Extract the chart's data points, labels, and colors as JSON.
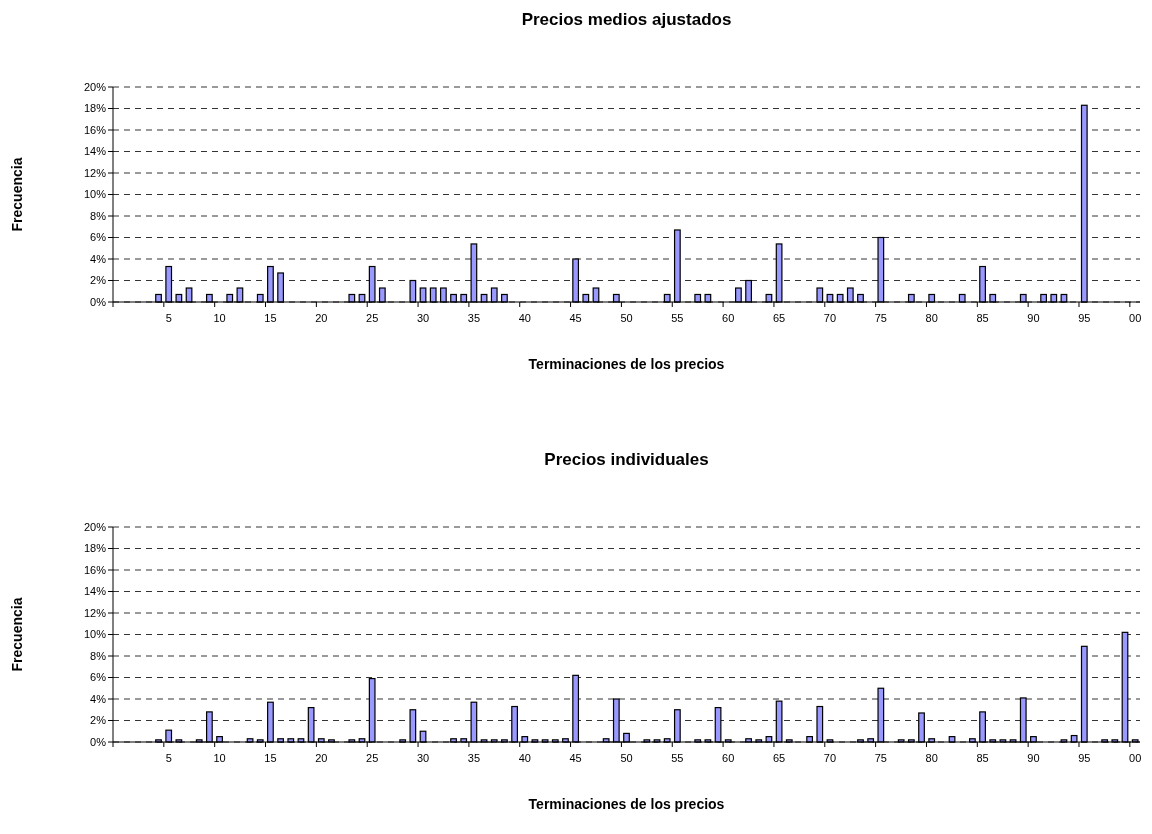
{
  "chart_data": [
    {
      "type": "bar",
      "title": "Precios medios ajustados",
      "xlabel": "Terminaciones de los precios",
      "ylabel": "Frecuencia",
      "color": "#9999ff",
      "grid": "y",
      "ylim": [
        0,
        20
      ],
      "yticks": [
        {
          "value": 0,
          "label": "0%"
        },
        {
          "value": 2,
          "label": "2%"
        },
        {
          "value": 4,
          "label": "4%"
        },
        {
          "value": 6,
          "label": "6%"
        },
        {
          "value": 8,
          "label": "8%"
        },
        {
          "value": 10,
          "label": "10%"
        },
        {
          "value": 12,
          "label": "12%"
        },
        {
          "value": 14,
          "label": "14%"
        },
        {
          "value": 16,
          "label": "16%"
        },
        {
          "value": 18,
          "label": "18%"
        },
        {
          "value": 20,
          "label": "20%"
        }
      ],
      "categories": [
        null,
        null,
        null,
        null,
        null,
        "5",
        null,
        null,
        null,
        null,
        "10",
        null,
        null,
        null,
        null,
        "15",
        null,
        null,
        null,
        null,
        "20",
        null,
        null,
        null,
        null,
        "25",
        null,
        null,
        null,
        null,
        "30",
        null,
        null,
        null,
        null,
        "35",
        null,
        null,
        null,
        null,
        "40",
        null,
        null,
        null,
        null,
        "45",
        null,
        null,
        null,
        null,
        "50",
        null,
        null,
        null,
        null,
        "55",
        null,
        null,
        null,
        null,
        "60",
        null,
        null,
        null,
        null,
        "65",
        null,
        null,
        null,
        null,
        "70",
        null,
        null,
        null,
        null,
        "75",
        null,
        null,
        null,
        null,
        "80",
        null,
        null,
        null,
        null,
        "85",
        null,
        null,
        null,
        null,
        "90",
        null,
        null,
        null,
        null,
        "95",
        null,
        null,
        null,
        null,
        "00"
      ],
      "values": [
        null,
        null,
        null,
        null,
        0.7,
        3.3,
        0.7,
        1.3,
        null,
        0.7,
        null,
        0.7,
        1.3,
        null,
        0.7,
        3.3,
        2.7,
        null,
        null,
        null,
        null,
        null,
        null,
        0.7,
        0.7,
        3.3,
        1.3,
        null,
        null,
        2.0,
        1.3,
        1.3,
        1.3,
        0.7,
        0.7,
        5.4,
        0.7,
        1.3,
        0.7,
        null,
        null,
        null,
        null,
        null,
        null,
        4.0,
        0.7,
        1.3,
        null,
        0.7,
        null,
        null,
        null,
        null,
        0.7,
        6.7,
        null,
        0.7,
        0.7,
        null,
        null,
        1.3,
        2.0,
        null,
        0.7,
        5.4,
        null,
        null,
        null,
        1.3,
        0.7,
        0.7,
        1.3,
        0.7,
        null,
        6.0,
        null,
        null,
        0.7,
        null,
        0.7,
        null,
        null,
        0.7,
        null,
        3.3,
        0.7,
        null,
        null,
        0.7,
        null,
        0.7,
        0.7,
        0.7,
        null,
        18.3,
        null,
        null,
        null,
        null,
        null
      ]
    },
    {
      "type": "bar",
      "title": "Precios individuales",
      "xlabel": "Terminaciones de los precios",
      "ylabel": "Frecuencia",
      "color": "#9999ff",
      "grid": "y",
      "ylim": [
        0,
        20
      ],
      "yticks": [
        {
          "value": 0,
          "label": "0%"
        },
        {
          "value": 2,
          "label": "2%"
        },
        {
          "value": 4,
          "label": "4%"
        },
        {
          "value": 6,
          "label": "6%"
        },
        {
          "value": 8,
          "label": "8%"
        },
        {
          "value": 10,
          "label": "10%"
        },
        {
          "value": 12,
          "label": "12%"
        },
        {
          "value": 14,
          "label": "14%"
        },
        {
          "value": 16,
          "label": "16%"
        },
        {
          "value": 18,
          "label": "18%"
        },
        {
          "value": 20,
          "label": "20%"
        }
      ],
      "categories": [
        null,
        null,
        null,
        null,
        null,
        "5",
        null,
        null,
        null,
        null,
        "10",
        null,
        null,
        null,
        null,
        "15",
        null,
        null,
        null,
        null,
        "20",
        null,
        null,
        null,
        null,
        "25",
        null,
        null,
        null,
        null,
        "30",
        null,
        null,
        null,
        null,
        "35",
        null,
        null,
        null,
        null,
        "40",
        null,
        null,
        null,
        null,
        "45",
        null,
        null,
        null,
        null,
        "50",
        null,
        null,
        null,
        null,
        "55",
        null,
        null,
        null,
        null,
        "60",
        null,
        null,
        null,
        null,
        "65",
        null,
        null,
        null,
        null,
        "70",
        null,
        null,
        null,
        null,
        "75",
        null,
        null,
        null,
        null,
        "80",
        null,
        null,
        null,
        null,
        "85",
        null,
        null,
        null,
        null,
        "90",
        null,
        null,
        null,
        null,
        "95",
        null,
        null,
        null,
        null,
        "00"
      ],
      "values": [
        null,
        null,
        null,
        null,
        0.2,
        1.1,
        0.2,
        null,
        0.2,
        2.8,
        0.5,
        null,
        null,
        0.3,
        0.2,
        3.7,
        0.3,
        0.3,
        0.3,
        3.2,
        0.3,
        0.2,
        null,
        0.2,
        0.3,
        5.9,
        null,
        null,
        0.2,
        3.0,
        1.0,
        null,
        null,
        0.3,
        0.3,
        3.7,
        0.2,
        0.2,
        0.2,
        3.3,
        0.5,
        0.2,
        0.2,
        0.2,
        0.3,
        6.2,
        null,
        null,
        0.3,
        4.0,
        0.8,
        null,
        0.2,
        0.2,
        0.3,
        3.0,
        null,
        0.2,
        0.2,
        3.2,
        0.2,
        null,
        0.3,
        0.2,
        0.5,
        3.8,
        0.2,
        null,
        0.5,
        3.3,
        0.2,
        null,
        null,
        0.2,
        0.3,
        5.0,
        null,
        0.2,
        0.2,
        2.7,
        0.3,
        null,
        0.5,
        null,
        0.3,
        2.8,
        0.2,
        0.2,
        0.2,
        4.1,
        0.5,
        null,
        null,
        0.2,
        0.6,
        8.9,
        null,
        0.2,
        0.2,
        10.2,
        0.2
      ]
    }
  ]
}
